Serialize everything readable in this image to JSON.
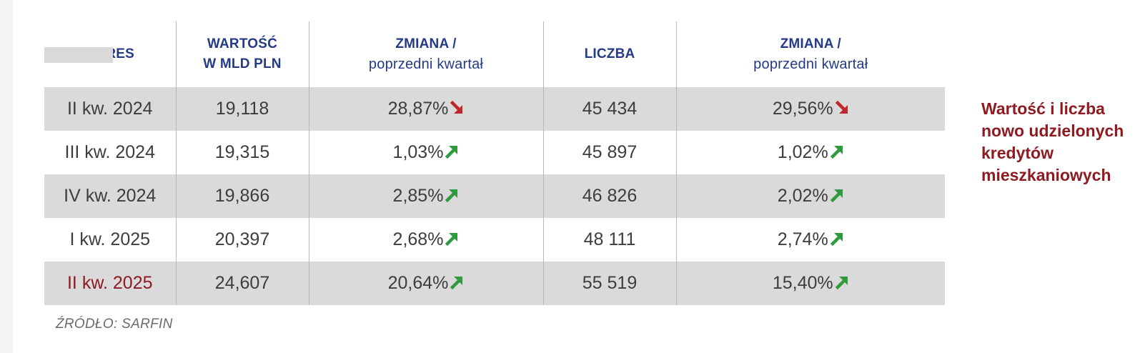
{
  "headers": {
    "okres": "OKRES",
    "wartosc": [
      "WARTOŚĆ",
      "W MLD PLN"
    ],
    "zmiana_wartosc": [
      "ZMIANA /",
      "poprzedni kwartał"
    ],
    "liczba": "LICZBA",
    "zmiana_liczba": [
      "ZMIANA /",
      "poprzedni kwartał"
    ]
  },
  "rows": [
    {
      "okres": "II kw. 2024",
      "wartosc": "19,118",
      "zmiana_wartosc": "28,87%",
      "zmiana_wartosc_dir": "down",
      "liczba": "45 434",
      "zmiana_liczba": "29,56%",
      "zmiana_liczba_dir": "down",
      "shaded": true,
      "current": false
    },
    {
      "okres": "III kw. 2024",
      "wartosc": "19,315",
      "zmiana_wartosc": "1,03%",
      "zmiana_wartosc_dir": "up",
      "liczba": "45 897",
      "zmiana_liczba": "1,02%",
      "zmiana_liczba_dir": "up",
      "shaded": false,
      "current": false
    },
    {
      "okres": "IV kw. 2024",
      "wartosc": "19,866",
      "zmiana_wartosc": "2,85%",
      "zmiana_wartosc_dir": "up",
      "liczba": "46 826",
      "zmiana_liczba": "2,02%",
      "zmiana_liczba_dir": "up",
      "shaded": true,
      "current": false
    },
    {
      "okres": "I kw. 2025",
      "wartosc": "20,397",
      "zmiana_wartosc": "2,68%",
      "zmiana_wartosc_dir": "up",
      "liczba": "48 111",
      "zmiana_liczba": "2,74%",
      "zmiana_liczba_dir": "up",
      "shaded": false,
      "current": false
    },
    {
      "okres": "II kw. 2025",
      "wartosc": "24,607",
      "zmiana_wartosc": "20,64%",
      "zmiana_wartosc_dir": "up",
      "liczba": "55 519",
      "zmiana_liczba": "15,40%",
      "zmiana_liczba_dir": "up",
      "shaded": true,
      "current": true
    }
  ],
  "note": [
    "Wartość i liczba",
    "nowo udzielonych",
    "kredytów",
    "mieszkaniowych"
  ],
  "source": "ŹRÓDŁO: SARFIN",
  "colors": {
    "header": "#243a86",
    "accent": "#8e1b22",
    "arrow_up": "#2f9a3e",
    "arrow_down": "#c0272d",
    "shade": "#dadada"
  }
}
